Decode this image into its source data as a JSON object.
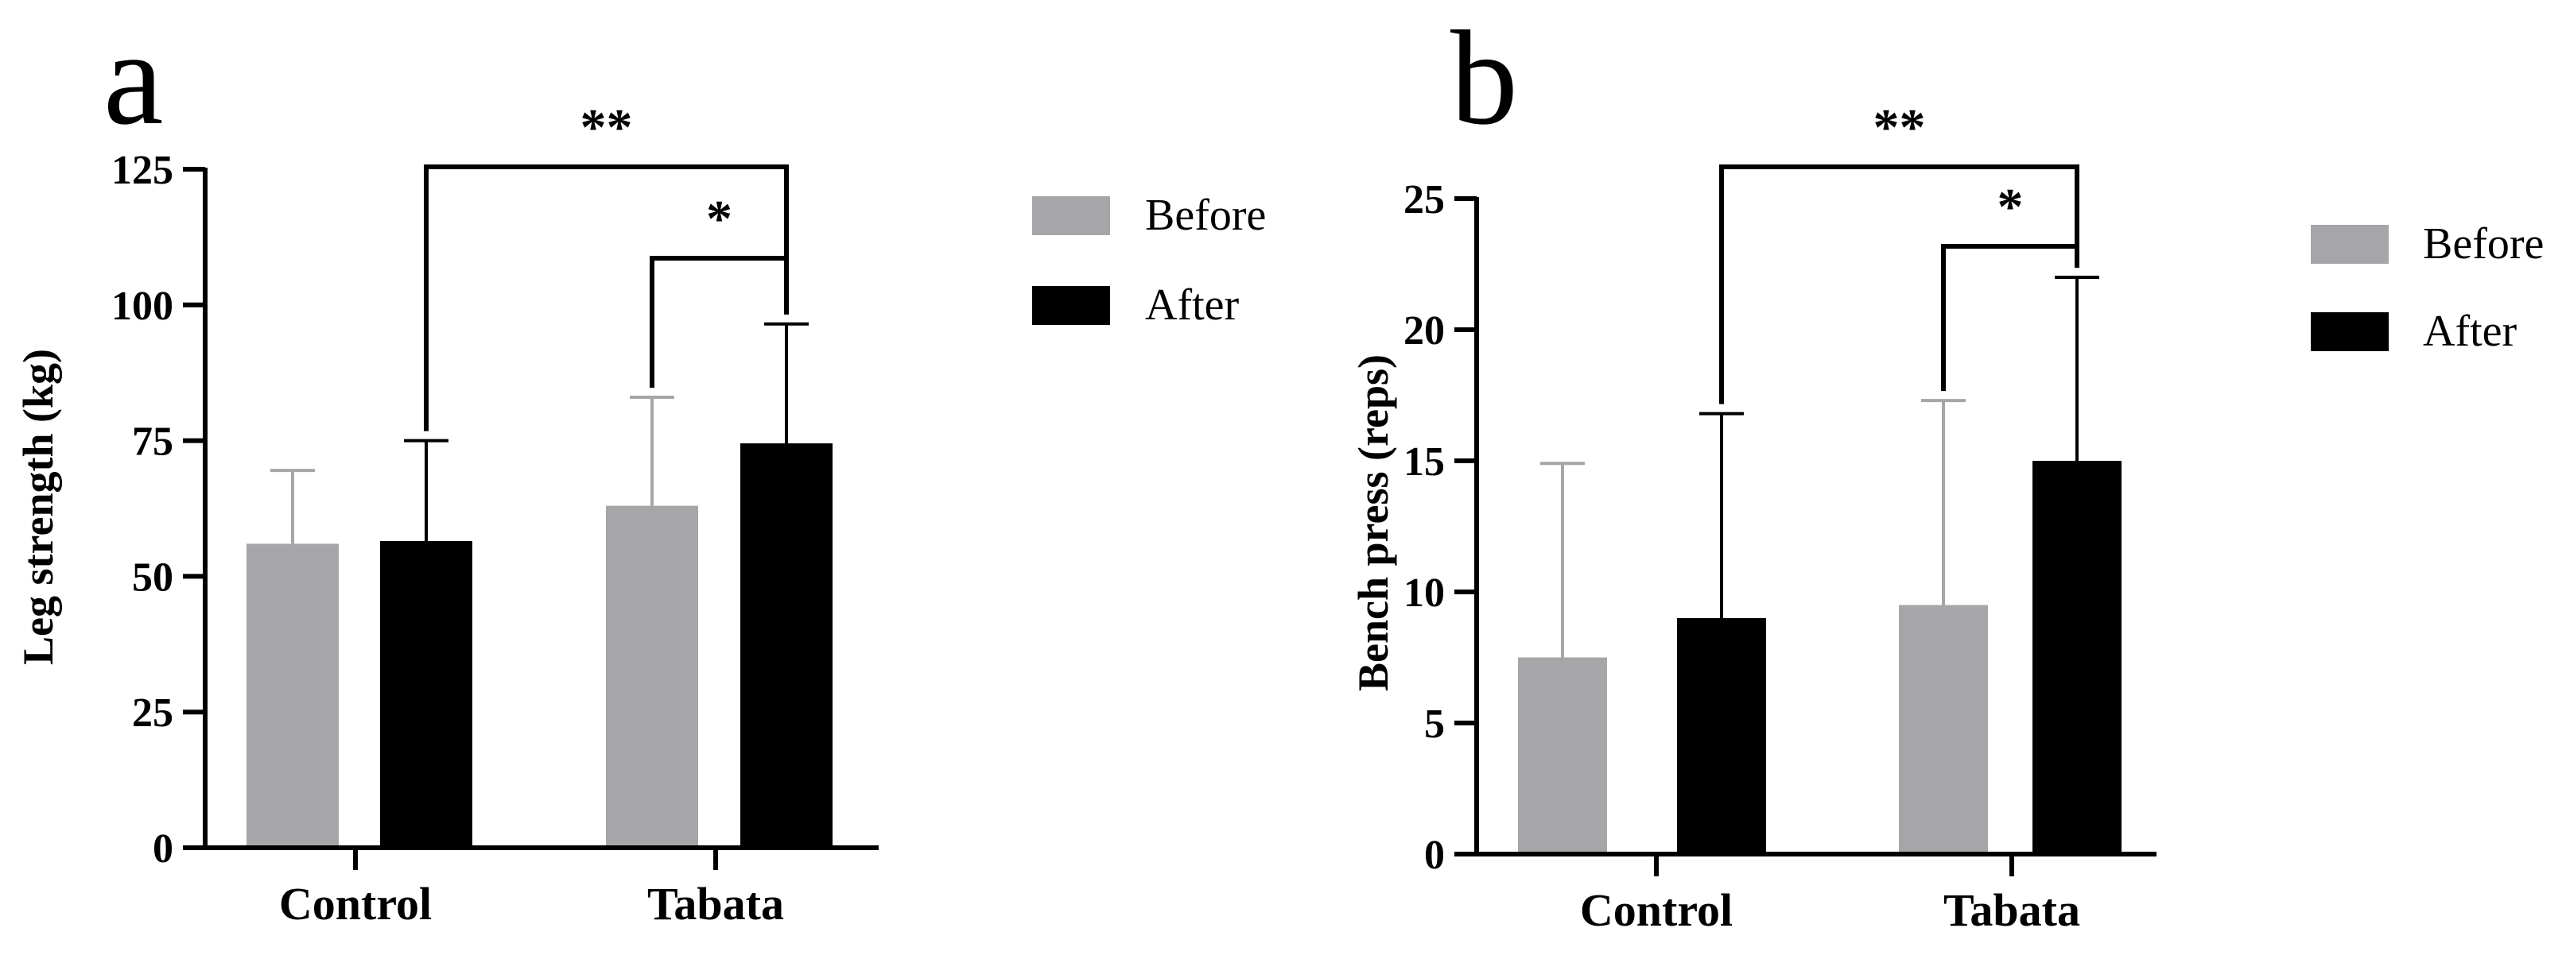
{
  "chart_data": [
    {
      "panel": "a",
      "type": "bar",
      "categories": [
        "Control",
        "Tabata"
      ],
      "ylabel": "Leg strength (kg)",
      "xlabel": "",
      "ylim": [
        0,
        125
      ],
      "yticks": [
        0,
        25,
        50,
        75,
        100,
        125
      ],
      "series": [
        {
          "name": "Before",
          "color": "#a6a6a9",
          "values": [
            56,
            63
          ],
          "errors": [
            13.5,
            20
          ]
        },
        {
          "name": "After",
          "color": "#000000",
          "values": [
            56.5,
            74.5
          ],
          "errors": [
            18.5,
            22
          ]
        }
      ],
      "significance": [
        {
          "label": "**",
          "from": "Control After",
          "to": "Tabata After"
        },
        {
          "label": "*",
          "from": "Tabata Before",
          "to": "Tabata After"
        }
      ],
      "legend": [
        "Before",
        "After"
      ],
      "legend_position": "right"
    },
    {
      "panel": "b",
      "type": "bar",
      "categories": [
        "Control",
        "Tabata"
      ],
      "ylabel": "Bench press (reps)",
      "xlabel": "",
      "ylim": [
        0,
        25
      ],
      "yticks": [
        0,
        5,
        10,
        15,
        20,
        25
      ],
      "series": [
        {
          "name": "Before",
          "color": "#a6a6a9",
          "values": [
            7.5,
            9.5
          ],
          "errors": [
            7.4,
            7.8
          ]
        },
        {
          "name": "After",
          "color": "#000000",
          "values": [
            9,
            15
          ],
          "errors": [
            7.8,
            7
          ]
        }
      ],
      "significance": [
        {
          "label": "**",
          "from": "Control After",
          "to": "Tabata After"
        },
        {
          "label": "*",
          "from": "Tabata Before",
          "to": "Tabata After"
        }
      ],
      "legend": [
        "Before",
        "After"
      ],
      "legend_position": "right"
    }
  ]
}
